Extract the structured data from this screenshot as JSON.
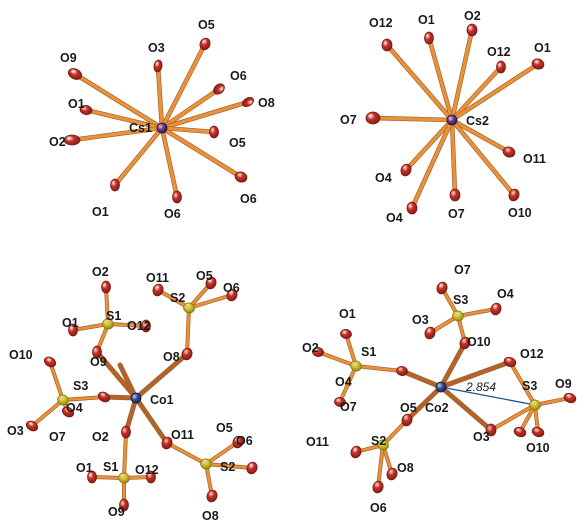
{
  "colors": {
    "bond": "#e8923c",
    "bond_dark": "#a8632a",
    "oxygen": "#c8322a",
    "oxygen_dark": "#7a1a14",
    "cesium": "#7a3f9a",
    "cobalt": "#2a5fb0",
    "sulfur": "#d8c832",
    "contact_line": "#1f4fa0"
  },
  "panels": {
    "cs1": {
      "center_label": "Cs1",
      "labels": [
        "O9",
        "O3",
        "O5",
        "O6",
        "O1",
        "O8",
        "O2",
        "O5",
        "O6",
        "O1",
        "O6"
      ]
    },
    "cs2": {
      "center_label": "Cs2",
      "labels": [
        "O12",
        "O1",
        "O2",
        "O12",
        "O1",
        "O7",
        "O11",
        "O4",
        "O7",
        "O4",
        "O10"
      ]
    },
    "co1": {
      "center_label": "Co1",
      "labels": [
        "O2",
        "O11",
        "S2",
        "O5",
        "O6",
        "S1",
        "O1",
        "O12",
        "O9",
        "O8",
        "O10",
        "S3",
        "O4",
        "O3",
        "O7",
        "O2",
        "O11",
        "O5",
        "O6",
        "S2",
        "O1",
        "S1",
        "O12",
        "O9",
        "O8"
      ]
    },
    "co2": {
      "center_label": "Co2",
      "labels": [
        "O7",
        "S3",
        "O4",
        "O3",
        "O10",
        "O1",
        "O2",
        "S1",
        "O12",
        "O7",
        "O9",
        "S3",
        "O4",
        "O5",
        "O3",
        "O10",
        "O11",
        "S2",
        "O8",
        "O6"
      ],
      "distance_label": "2.854"
    }
  }
}
